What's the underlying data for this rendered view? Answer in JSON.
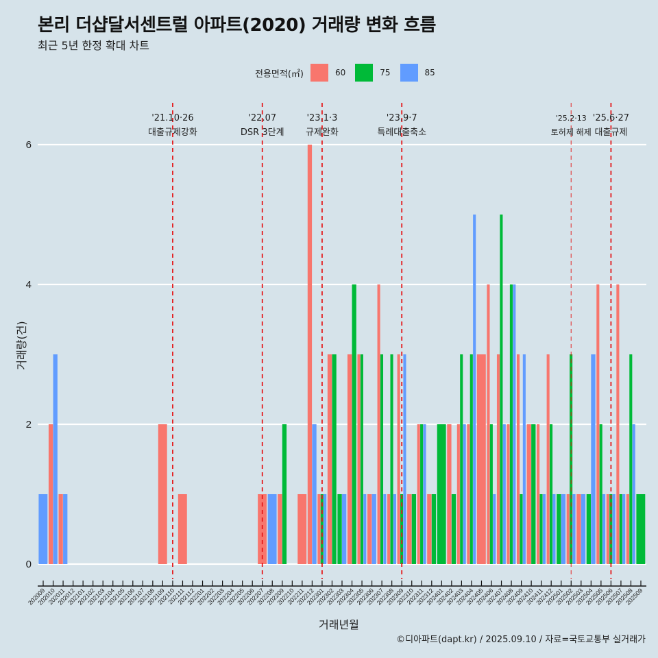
{
  "header": {
    "title": "본리 더샵달서센트럴 아파트(2020) 거래량 변화 흐름",
    "subtitle": "최근 5년 한정 확대 차트"
  },
  "legend": {
    "title": "전용면적(㎡)",
    "items": [
      {
        "label": "60",
        "color": "#f8766d"
      },
      {
        "label": "75",
        "color": "#00ba38"
      },
      {
        "label": "85",
        "color": "#619cff"
      }
    ]
  },
  "footer": "©디아파트(dapt.kr) / 2025.09.10 / 자료=국토교통부 실거래가",
  "chart_data": {
    "type": "bar",
    "title": "본리 더샵달서센트럴 아파트(2020) 거래량 변화 흐름",
    "subtitle": "최근 5년 한정 확대 차트",
    "xlabel": "거래년월",
    "ylabel": "거래량(건)",
    "ylim": [
      0,
      6
    ],
    "yticks": [
      0,
      2,
      4,
      6
    ],
    "grid": "horizontal",
    "legend_position": "top",
    "categories": [
      "202009",
      "202010",
      "202011",
      "202012",
      "202101",
      "202102",
      "202103",
      "202104",
      "202105",
      "202106",
      "202107",
      "202108",
      "202109",
      "202110",
      "202111",
      "202112",
      "202201",
      "202202",
      "202203",
      "202204",
      "202205",
      "202206",
      "202207",
      "202208",
      "202209",
      "202210",
      "202211",
      "202212",
      "202301",
      "202302",
      "202303",
      "202304",
      "202305",
      "202306",
      "202307",
      "202308",
      "202309",
      "202310",
      "202311",
      "202312",
      "202401",
      "202402",
      "202403",
      "202404",
      "202405",
      "202406",
      "202407",
      "202408",
      "202409",
      "202410",
      "202411",
      "202412",
      "202501",
      "202502",
      "202503",
      "202504",
      "202505",
      "202506",
      "202507",
      "202508",
      "202509"
    ],
    "series": [
      {
        "name": "60",
        "color": "#f8766d",
        "values": [
          0,
          2,
          1,
          0,
          0,
          0,
          0,
          0,
          0,
          0,
          0,
          0,
          2,
          0,
          1,
          0,
          0,
          0,
          0,
          0,
          0,
          0,
          1,
          0,
          1,
          0,
          1,
          6,
          1,
          3,
          0,
          3,
          3,
          1,
          4,
          1,
          3,
          1,
          2,
          1,
          0,
          2,
          2,
          2,
          3,
          4,
          3,
          2,
          3,
          2,
          2,
          3,
          0,
          1,
          1,
          0,
          4,
          1,
          4,
          1,
          0
        ]
      },
      {
        "name": "75",
        "color": "#00ba38",
        "values": [
          0,
          0,
          0,
          0,
          0,
          0,
          0,
          0,
          0,
          0,
          0,
          0,
          0,
          0,
          0,
          0,
          0,
          0,
          0,
          0,
          0,
          0,
          0,
          0,
          2,
          0,
          0,
          0,
          1,
          3,
          1,
          4,
          3,
          0,
          3,
          3,
          1,
          1,
          2,
          1,
          2,
          1,
          3,
          3,
          0,
          2,
          5,
          4,
          1,
          2,
          1,
          2,
          1,
          3,
          0,
          1,
          2,
          1,
          1,
          3,
          1
        ]
      },
      {
        "name": "85",
        "color": "#619cff",
        "values": [
          1,
          3,
          1,
          0,
          0,
          0,
          0,
          0,
          0,
          0,
          0,
          0,
          0,
          0,
          0,
          0,
          0,
          0,
          0,
          0,
          0,
          0,
          0,
          1,
          0,
          0,
          0,
          2,
          1,
          0,
          1,
          0,
          1,
          1,
          1,
          1,
          3,
          0,
          2,
          0,
          0,
          0,
          2,
          5,
          0,
          1,
          2,
          4,
          3,
          0,
          1,
          1,
          1,
          1,
          1,
          3,
          1,
          1,
          1,
          2,
          0
        ]
      }
    ],
    "annotations": [
      {
        "x": "202110",
        "date": "'21.10·26",
        "label": "대출규제강화",
        "style": "dashed"
      },
      {
        "x": "202207",
        "date": "'22.07",
        "label": "DSR 3단계",
        "style": "dashed"
      },
      {
        "x": "202301",
        "date": "'23.1·3",
        "label": "규제완화",
        "style": "dashed"
      },
      {
        "x": "202309",
        "date": "'23.9·7",
        "label": "특례대출축소",
        "style": "dashed"
      },
      {
        "x": "202502",
        "date": "'25.2·13",
        "label": "토허제 해제",
        "style": "dashed-thin"
      },
      {
        "x": "202506",
        "date": "'25.6·27",
        "label": "대출규제",
        "style": "dashed"
      }
    ],
    "annotation_color": "#e41a1c"
  }
}
